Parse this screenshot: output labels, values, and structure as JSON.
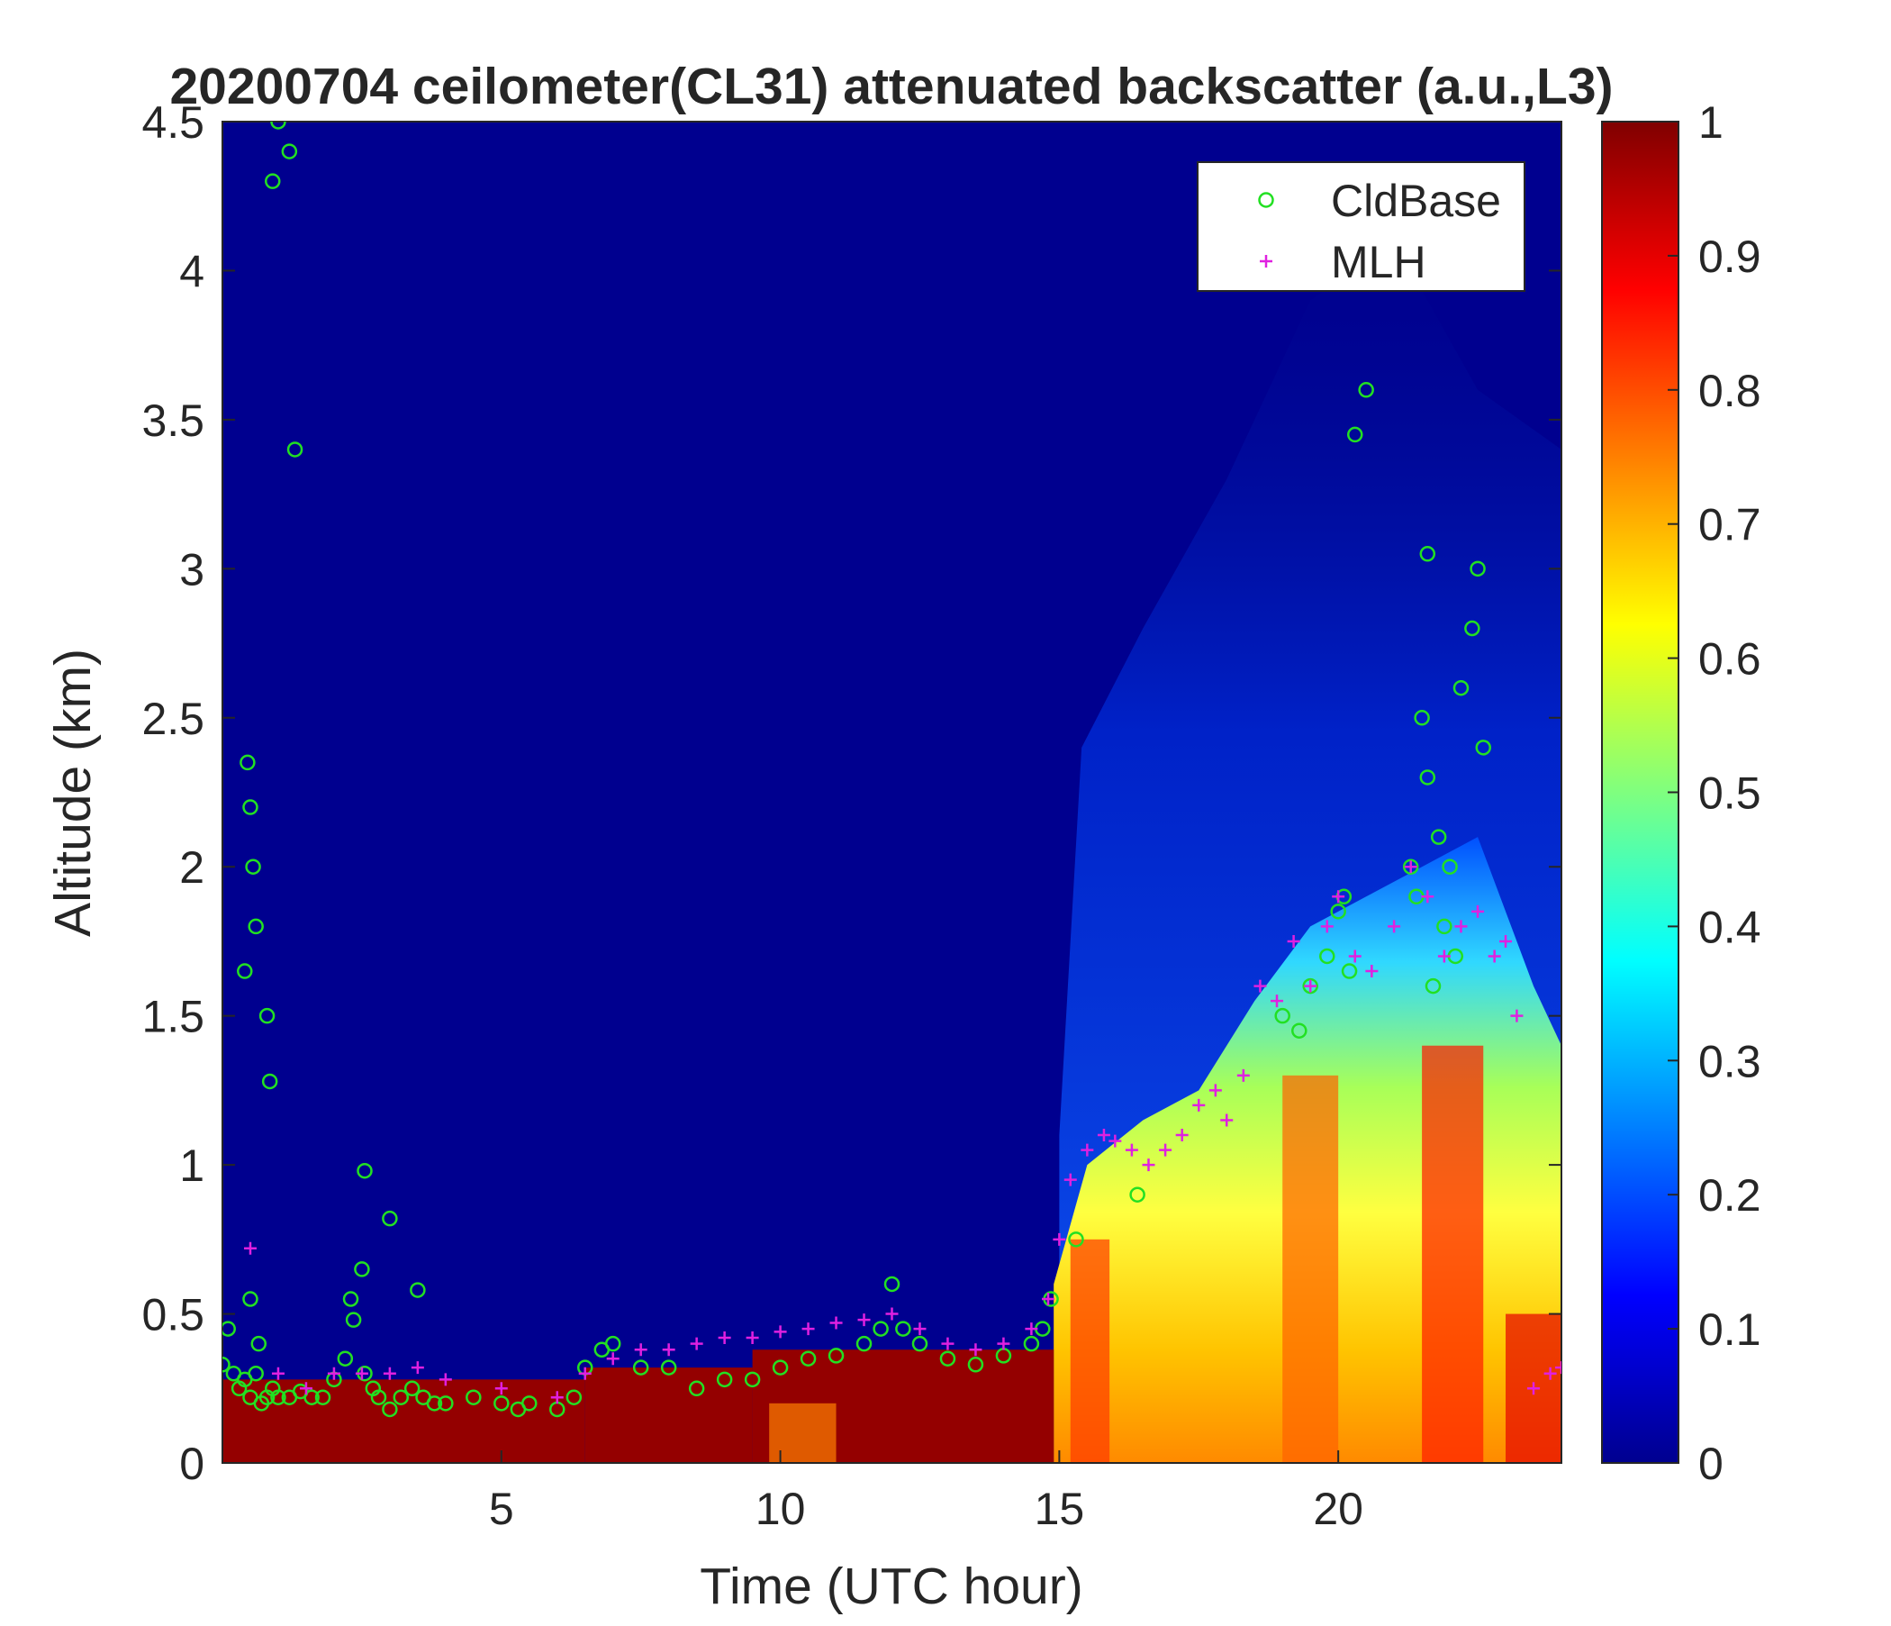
{
  "chart_data": {
    "type": "heatmap",
    "title": "20200704 ceilometer(CL31) attenuated backscatter (a.u.,L3)",
    "xlabel": "Time (UTC hour)",
    "ylabel": "Altitude (km)",
    "xlim": [
      0,
      24
    ],
    "ylim": [
      0,
      4.5
    ],
    "x_ticks": [
      5,
      10,
      15,
      20
    ],
    "x_tick_labels": [
      "5",
      "10",
      "15",
      "20"
    ],
    "y_ticks": [
      0,
      0.5,
      1,
      1.5,
      2,
      2.5,
      3,
      3.5,
      4,
      4.5
    ],
    "y_tick_labels": [
      "0",
      "0.5",
      "1",
      "1.5",
      "2",
      "2.5",
      "3",
      "3.5",
      "4",
      "4.5"
    ],
    "colorbar": {
      "colormap": "jet",
      "range": [
        0,
        1
      ],
      "ticks": [
        0,
        0.1,
        0.2,
        0.3,
        0.4,
        0.5,
        0.6,
        0.7,
        0.8,
        0.9,
        1
      ],
      "tick_labels": [
        "0",
        "0.1",
        "0.2",
        "0.3",
        "0.4",
        "0.5",
        "0.6",
        "0.7",
        "0.8",
        "0.9",
        "1"
      ]
    },
    "legend": {
      "position": "top-right",
      "entries": [
        "CldBase",
        "MLH"
      ]
    },
    "colors": {
      "cldbase": "#22e022",
      "mlh": "#e020e0"
    },
    "series": [
      {
        "name": "CldBase",
        "marker": "circle",
        "x": [
          0.0,
          0.1,
          0.2,
          0.3,
          0.4,
          0.5,
          0.6,
          0.7,
          0.8,
          0.9,
          1.0,
          1.2,
          1.4,
          1.6,
          1.8,
          2.0,
          2.2,
          2.35,
          2.5,
          2.55,
          2.7,
          2.8,
          3.0,
          3.2,
          3.4,
          3.6,
          3.8,
          4.0,
          4.5,
          5.0,
          5.3,
          5.5,
          6.0,
          6.3,
          6.5,
          6.8,
          7.0,
          7.5,
          8.0,
          8.5,
          9.0,
          9.5,
          10.0,
          10.5,
          11.0,
          11.5,
          11.8,
          12.0,
          12.2,
          12.5,
          13.0,
          13.5,
          14.0,
          14.5,
          14.7,
          14.85,
          0.4,
          0.45,
          0.5,
          0.55,
          0.6,
          0.8,
          0.85,
          0.9,
          1.0,
          1.2,
          1.3,
          0.5,
          0.65,
          2.55,
          3.0,
          3.5,
          2.3,
          15.3,
          16.4,
          19.0,
          19.3,
          19.5,
          19.8,
          20.0,
          20.2,
          20.5,
          20.3,
          21.3,
          21.5,
          21.6,
          21.8,
          22.0,
          22.2,
          22.4,
          22.5,
          22.6,
          21.7,
          21.9,
          22.1,
          21.4,
          20.1,
          21.6
        ],
        "y": [
          0.33,
          0.45,
          0.3,
          0.25,
          0.28,
          0.22,
          0.3,
          0.2,
          0.22,
          0.25,
          0.22,
          0.22,
          0.24,
          0.22,
          0.22,
          0.28,
          0.35,
          0.48,
          0.65,
          0.3,
          0.25,
          0.22,
          0.18,
          0.22,
          0.25,
          0.22,
          0.2,
          0.2,
          0.22,
          0.2,
          0.18,
          0.2,
          0.18,
          0.22,
          0.32,
          0.38,
          0.4,
          0.32,
          0.32,
          0.25,
          0.28,
          0.28,
          0.32,
          0.35,
          0.36,
          0.4,
          0.45,
          0.6,
          0.45,
          0.4,
          0.35,
          0.33,
          0.36,
          0.4,
          0.45,
          0.55,
          1.65,
          2.35,
          2.2,
          2.0,
          1.8,
          1.5,
          1.28,
          4.3,
          4.5,
          4.4,
          3.4,
          0.55,
          0.4,
          0.98,
          0.82,
          0.58,
          0.55,
          0.75,
          0.9,
          1.5,
          1.45,
          1.6,
          1.7,
          1.85,
          1.65,
          3.6,
          3.45,
          2.0,
          2.5,
          2.3,
          2.1,
          2.0,
          2.6,
          2.8,
          3.0,
          2.4,
          1.6,
          1.8,
          1.7,
          1.9,
          1.9,
          3.05
        ],
        "note": ""
      },
      {
        "name": "MLH",
        "marker": "plus",
        "x": [
          0.5,
          1.0,
          1.5,
          2.0,
          2.5,
          3.0,
          3.5,
          4.0,
          5.0,
          6.0,
          6.5,
          7.0,
          7.5,
          8.0,
          8.5,
          9.0,
          9.5,
          10.0,
          10.5,
          11.0,
          11.5,
          12.0,
          12.5,
          13.0,
          13.5,
          14.0,
          14.5,
          14.8,
          15.0,
          15.2,
          15.5,
          15.8,
          16.0,
          16.3,
          16.6,
          16.9,
          17.2,
          17.5,
          17.8,
          18.0,
          18.3,
          18.6,
          18.9,
          19.2,
          19.5,
          19.8,
          20.0,
          20.3,
          20.6,
          21.0,
          21.3,
          21.6,
          21.9,
          22.2,
          22.5,
          22.8,
          23.0,
          23.2,
          23.5,
          23.8,
          24.0
        ],
        "y": [
          0.72,
          0.3,
          0.25,
          0.3,
          0.3,
          0.3,
          0.32,
          0.28,
          0.25,
          0.22,
          0.3,
          0.35,
          0.38,
          0.38,
          0.4,
          0.42,
          0.42,
          0.44,
          0.45,
          0.47,
          0.48,
          0.5,
          0.45,
          0.4,
          0.38,
          0.4,
          0.45,
          0.55,
          0.75,
          0.95,
          1.05,
          1.1,
          1.08,
          1.05,
          1.0,
          1.05,
          1.1,
          1.2,
          1.25,
          1.15,
          1.3,
          1.6,
          1.55,
          1.75,
          1.6,
          1.8,
          1.9,
          1.7,
          1.65,
          1.8,
          2.0,
          1.9,
          1.7,
          1.8,
          1.85,
          1.7,
          1.75,
          1.5,
          0.25,
          0.3,
          0.32
        ],
        "note": ""
      }
    ],
    "background_field": {
      "description": "",
      "bands": [
        {
          "t0": 0.0,
          "t1": 6.5,
          "top": 0.28,
          "level": 0.98
        },
        {
          "t0": 6.5,
          "t1": 9.5,
          "top": 0.32,
          "level": 0.98
        },
        {
          "t0": 9.5,
          "t1": 14.9,
          "top": 0.38,
          "level": 0.98
        },
        {
          "t0": 14.9,
          "t1": 24.0,
          "top": 0.65,
          "level": 0.72
        }
      ]
    }
  }
}
